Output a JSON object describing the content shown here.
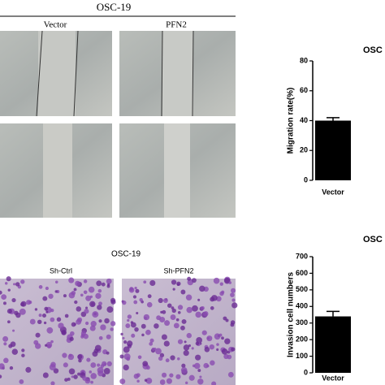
{
  "figure": {
    "top": {
      "title": "OSC-19",
      "labels": [
        "Vector",
        "PFN2"
      ]
    },
    "bottom": {
      "title": "OSC-19",
      "labels": [
        "Sh-Ctrl",
        "Sh-PFN2"
      ]
    }
  },
  "chart_data": [
    {
      "type": "bar",
      "title": "OSC",
      "ylabel": "Migration rate(%)",
      "categories": [
        "Vector"
      ],
      "values": [
        40
      ],
      "errors": [
        2
      ],
      "color": "#000000",
      "ylim": [
        0,
        80
      ],
      "yticks": [
        0,
        20,
        40,
        60,
        80
      ]
    },
    {
      "type": "bar",
      "title": "OSC",
      "ylabel": "Invasion cell numbers",
      "categories": [
        "Vector"
      ],
      "values": [
        340
      ],
      "errors": [
        30
      ],
      "color": "#000000",
      "ylim": [
        0,
        700
      ],
      "yticks": [
        0,
        100,
        200,
        300,
        400,
        500,
        600,
        700
      ]
    }
  ]
}
